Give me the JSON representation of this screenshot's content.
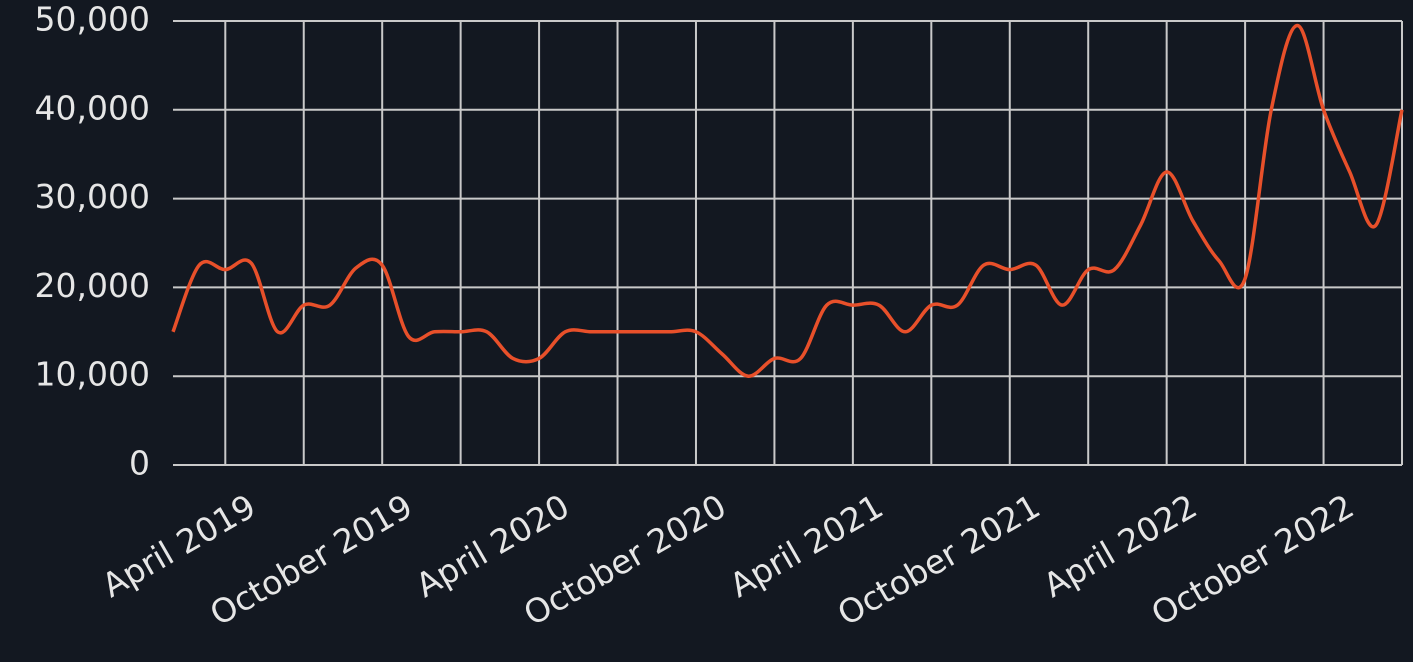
{
  "chart_data": {
    "type": "line",
    "x": [
      "2019-02",
      "2019-03",
      "2019-04",
      "2019-05",
      "2019-06",
      "2019-07",
      "2019-08",
      "2019-09",
      "2019-10",
      "2019-11",
      "2019-12",
      "2020-01",
      "2020-02",
      "2020-03",
      "2020-04",
      "2020-05",
      "2020-06",
      "2020-07",
      "2020-08",
      "2020-09",
      "2020-10",
      "2020-11",
      "2020-12",
      "2021-01",
      "2021-02",
      "2021-03",
      "2021-04",
      "2021-05",
      "2021-06",
      "2021-07",
      "2021-08",
      "2021-09",
      "2021-10",
      "2021-11",
      "2021-12",
      "2022-01",
      "2022-02",
      "2022-03",
      "2022-04",
      "2022-05",
      "2022-06",
      "2022-07",
      "2022-08",
      "2022-09",
      "2022-10",
      "2022-11",
      "2022-12",
      "2023-01"
    ],
    "series": [
      {
        "color": "#e8502a",
        "values": [
          15000,
          22500,
          22000,
          22700,
          15000,
          18000,
          18000,
          22200,
          22500,
          14500,
          15000,
          15000,
          15000,
          12000,
          12000,
          15000,
          15000,
          15000,
          15000,
          15000,
          15000,
          12500,
          10000,
          12000,
          12000,
          18000,
          18000,
          18000,
          15000,
          18000,
          18000,
          22500,
          22000,
          22500,
          18000,
          22000,
          22000,
          27000,
          33000,
          27500,
          23000,
          21000,
          40000,
          49500,
          40000,
          33000,
          27000,
          40000
        ]
      }
    ],
    "xlim": [
      "2019-02",
      "2023-01"
    ],
    "xticks": [
      {
        "value": "2019-04",
        "label": "April 2019"
      },
      {
        "value": "2019-07",
        "label": null
      },
      {
        "value": "2019-10",
        "label": "October 2019"
      },
      {
        "value": "2020-01",
        "label": null
      },
      {
        "value": "2020-04",
        "label": "April 2020"
      },
      {
        "value": "2020-07",
        "label": null
      },
      {
        "value": "2020-10",
        "label": "October 2020"
      },
      {
        "value": "2021-01",
        "label": null
      },
      {
        "value": "2021-04",
        "label": "April 2021"
      },
      {
        "value": "2021-07",
        "label": null
      },
      {
        "value": "2021-10",
        "label": "October 2021"
      },
      {
        "value": "2022-01",
        "label": null
      },
      {
        "value": "2022-04",
        "label": "April 2022"
      },
      {
        "value": "2022-07",
        "label": null
      },
      {
        "value": "2022-10",
        "label": "October 2022"
      },
      {
        "value": "2023-01",
        "label": null
      }
    ],
    "ylim": [
      0,
      50000
    ],
    "yticks": [
      0,
      {
        "value": 10000,
        "label": "10,000"
      },
      {
        "value": 20000,
        "label": "20,000"
      },
      {
        "value": 30000,
        "label": "30,000"
      },
      {
        "value": 40000,
        "label": "40,000"
      },
      {
        "value": 50000,
        "label": "50,000"
      }
    ],
    "grid": true
  }
}
